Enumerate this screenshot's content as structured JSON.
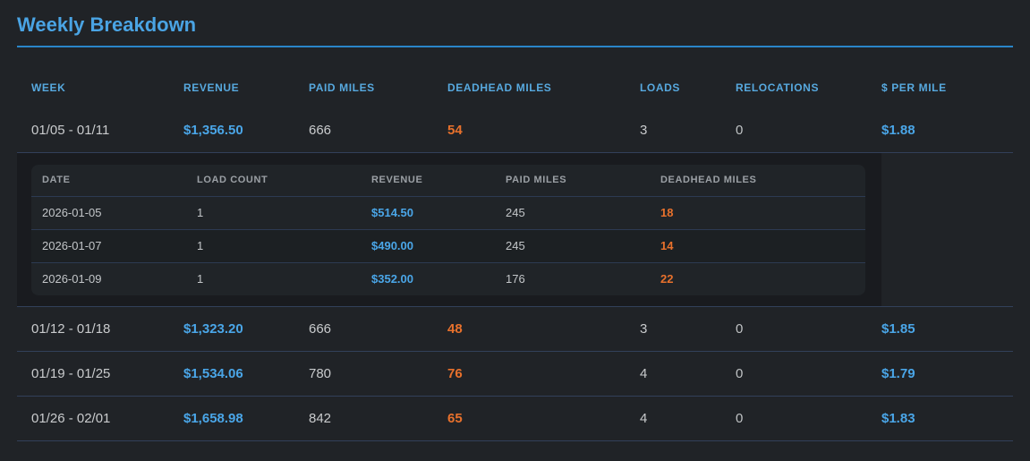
{
  "page": {
    "title": "Weekly Breakdown"
  },
  "colors": {
    "background": "#202327",
    "accent_blue": "#4aa6e8",
    "header_blue": "#57a9df",
    "orange": "#e8712c",
    "divider": "#32405a",
    "detail_background": "#191b1f"
  },
  "table": {
    "headers": {
      "week": "WEEK",
      "revenue": "REVENUE",
      "paid_miles": "PAID MILES",
      "deadhead_miles": "DEADHEAD MILES",
      "loads": "LOADS",
      "relocations": "RELOCATIONS",
      "per_mile": "$ PER MILE"
    },
    "rows": [
      {
        "week": "01/05 - 01/11",
        "revenue": "$1,356.50",
        "paid_miles": "666",
        "deadhead_miles": "54",
        "loads": "3",
        "relocations": "0",
        "per_mile": "$1.88",
        "expanded": true
      },
      {
        "week": "01/12 - 01/18",
        "revenue": "$1,323.20",
        "paid_miles": "666",
        "deadhead_miles": "48",
        "loads": "3",
        "relocations": "0",
        "per_mile": "$1.85",
        "expanded": false
      },
      {
        "week": "01/19 - 01/25",
        "revenue": "$1,534.06",
        "paid_miles": "780",
        "deadhead_miles": "76",
        "loads": "4",
        "relocations": "0",
        "per_mile": "$1.79",
        "expanded": false
      },
      {
        "week": "01/26 - 02/01",
        "revenue": "$1,658.98",
        "paid_miles": "842",
        "deadhead_miles": "65",
        "loads": "4",
        "relocations": "0",
        "per_mile": "$1.83",
        "expanded": false
      }
    ]
  },
  "detail_table": {
    "headers": {
      "date": "DATE",
      "load_count": "LOAD COUNT",
      "revenue": "REVENUE",
      "paid_miles": "PAID MILES",
      "deadhead_miles": "DEADHEAD MILES"
    },
    "rows": [
      {
        "date": "2026-01-05",
        "load_count": "1",
        "revenue": "$514.50",
        "paid_miles": "245",
        "deadhead_miles": "18"
      },
      {
        "date": "2026-01-07",
        "load_count": "1",
        "revenue": "$490.00",
        "paid_miles": "245",
        "deadhead_miles": "14"
      },
      {
        "date": "2026-01-09",
        "load_count": "1",
        "revenue": "$352.00",
        "paid_miles": "176",
        "deadhead_miles": "22"
      }
    ]
  }
}
